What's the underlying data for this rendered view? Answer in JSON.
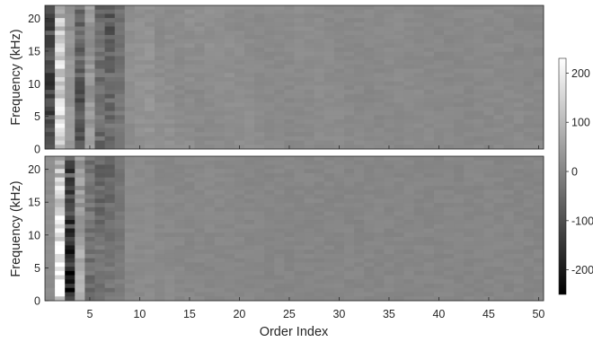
{
  "chart_data": {
    "type": "heatmap",
    "x_range": [
      1,
      50
    ],
    "y_range_khz": [
      0,
      22
    ],
    "colorbar": {
      "range": [
        -250,
        230
      ],
      "colormap": "gray",
      "ticks": [
        {
          "value": 200,
          "label": "200"
        },
        {
          "value": 100,
          "label": "100"
        },
        {
          "value": 0,
          "label": "0"
        },
        {
          "value": -100,
          "label": "-100"
        },
        {
          "value": -200,
          "label": "-200"
        }
      ]
    },
    "xlabel": "Order Index",
    "x_ticks": [
      {
        "value": 5,
        "label": "5"
      },
      {
        "value": 10,
        "label": "10"
      },
      {
        "value": 15,
        "label": "15"
      },
      {
        "value": 20,
        "label": "20"
      },
      {
        "value": 25,
        "label": "25"
      },
      {
        "value": 30,
        "label": "30"
      },
      {
        "value": 35,
        "label": "35"
      },
      {
        "value": 40,
        "label": "40"
      },
      {
        "value": 45,
        "label": "45"
      },
      {
        "value": 50,
        "label": "50"
      }
    ],
    "panels": [
      {
        "id": "top",
        "ylabel": "Frequency (kHz)",
        "y_ticks": [
          {
            "value": 0,
            "label": "0"
          },
          {
            "value": 5,
            "label": "5"
          },
          {
            "value": 10,
            "label": "10"
          },
          {
            "value": 15,
            "label": "15"
          },
          {
            "value": 20,
            "label": "20"
          }
        ],
        "column_values": [
          -120,
          160,
          40,
          -110,
          60,
          -80,
          -90,
          -40,
          20,
          25,
          30,
          20,
          25,
          20,
          25,
          20,
          20,
          18,
          20,
          18,
          18,
          18,
          15,
          16,
          15,
          15,
          14,
          14,
          14,
          13,
          12,
          12,
          12,
          12,
          12,
          12,
          11,
          11,
          11,
          11,
          11,
          10,
          10,
          10,
          10,
          10,
          10,
          10,
          10,
          10
        ]
      },
      {
        "id": "bottom",
        "ylabel": "Frequency (kHz)",
        "y_ticks": [
          {
            "value": 0,
            "label": "0"
          },
          {
            "value": 5,
            "label": "5"
          },
          {
            "value": 10,
            "label": "10"
          },
          {
            "value": 15,
            "label": "15"
          },
          {
            "value": 20,
            "label": "20"
          }
        ],
        "column_values": [
          20,
          200,
          -200,
          80,
          -60,
          -80,
          -60,
          -30,
          12,
          12,
          12,
          10,
          10,
          10,
          10,
          8,
          8,
          6,
          6,
          5,
          5,
          5,
          4,
          4,
          4,
          4,
          3,
          3,
          3,
          3,
          3,
          3,
          3,
          3,
          3,
          3,
          3,
          3,
          3,
          3,
          3,
          3,
          3,
          3,
          3,
          3,
          3,
          3,
          3,
          3
        ]
      }
    ]
  }
}
